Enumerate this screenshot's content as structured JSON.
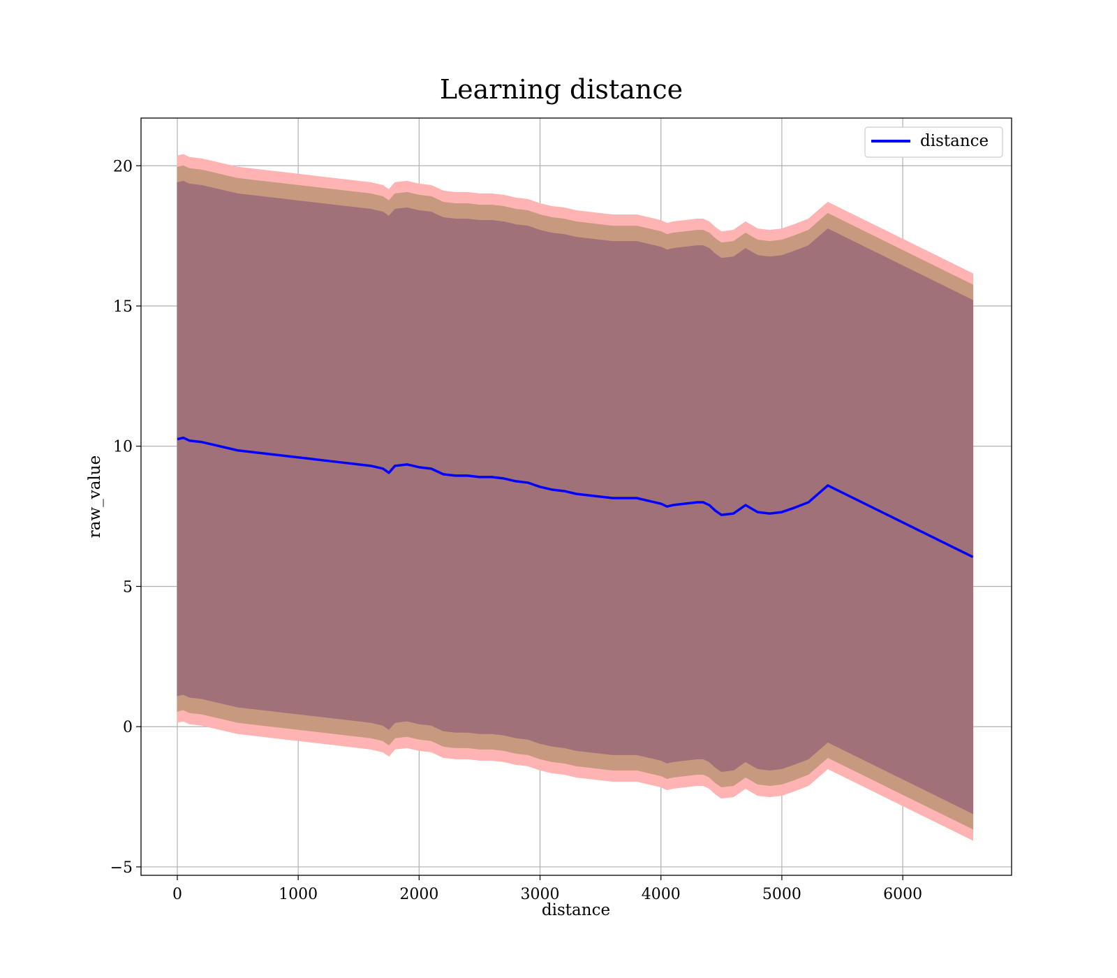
{
  "chart_data": {
    "type": "line",
    "title": "Learning distance",
    "xlabel": "distance",
    "ylabel": "raw_value",
    "xlim": [
      -300,
      6900
    ],
    "ylim": [
      -5.3,
      21.7
    ],
    "xticks": [
      0,
      1000,
      2000,
      3000,
      4000,
      5000,
      6000
    ],
    "yticks": [
      -5,
      0,
      5,
      10,
      15,
      20
    ],
    "grid": true,
    "legend": {
      "position": "top-right",
      "entries": [
        "distance"
      ]
    },
    "colors": {
      "line": "#0000ff",
      "band_outer": "#ffb3b3",
      "band_middle": "#c79a80",
      "band_inner": "#a17179"
    },
    "series": [
      {
        "name": "distance",
        "x": [
          0,
          50,
          100,
          200,
          300,
          400,
          500,
          600,
          700,
          800,
          900,
          1000,
          1100,
          1200,
          1300,
          1400,
          1500,
          1600,
          1700,
          1750,
          1800,
          1900,
          2000,
          2100,
          2200,
          2300,
          2400,
          2500,
          2600,
          2700,
          2800,
          2900,
          3000,
          3100,
          3200,
          3300,
          3400,
          3500,
          3600,
          3700,
          3800,
          3900,
          4000,
          4050,
          4100,
          4200,
          4300,
          4350,
          4400,
          4450,
          4500,
          4600,
          4700,
          4800,
          4900,
          5000,
          5100,
          5220,
          5380,
          6580
        ],
        "values": [
          10.25,
          10.3,
          10.2,
          10.15,
          10.05,
          9.95,
          9.85,
          9.8,
          9.75,
          9.7,
          9.65,
          9.6,
          9.55,
          9.5,
          9.45,
          9.4,
          9.35,
          9.3,
          9.2,
          9.05,
          9.3,
          9.35,
          9.25,
          9.2,
          9.0,
          8.95,
          8.95,
          8.9,
          8.9,
          8.85,
          8.75,
          8.7,
          8.55,
          8.45,
          8.4,
          8.3,
          8.25,
          8.2,
          8.15,
          8.15,
          8.15,
          8.05,
          7.95,
          7.85,
          7.9,
          7.95,
          8.0,
          8.0,
          7.9,
          7.7,
          7.55,
          7.6,
          7.9,
          7.65,
          7.6,
          7.65,
          7.8,
          8.0,
          8.6,
          6.05
        ],
        "band_outer_halfwidth": [
          10.1,
          10.1,
          10.1,
          10.1,
          10.1,
          10.1,
          10.1,
          10.1,
          10.1,
          10.1,
          10.1,
          10.1,
          10.1,
          10.1,
          10.1,
          10.1,
          10.1,
          10.1,
          10.1,
          10.1,
          10.1,
          10.1,
          10.1,
          10.1,
          10.1,
          10.1,
          10.1,
          10.1,
          10.1,
          10.1,
          10.1,
          10.1,
          10.1,
          10.1,
          10.1,
          10.1,
          10.1,
          10.1,
          10.1,
          10.1,
          10.1,
          10.1,
          10.1,
          10.1,
          10.1,
          10.1,
          10.1,
          10.1,
          10.1,
          10.1,
          10.1,
          10.1,
          10.1,
          10.1,
          10.1,
          10.1,
          10.1,
          10.1,
          10.1,
          10.1
        ],
        "band_middle_halfwidth": [
          9.7,
          9.7,
          9.7,
          9.7,
          9.7,
          9.7,
          9.7,
          9.7,
          9.7,
          9.7,
          9.7,
          9.7,
          9.7,
          9.7,
          9.7,
          9.7,
          9.7,
          9.7,
          9.7,
          9.7,
          9.7,
          9.7,
          9.7,
          9.7,
          9.7,
          9.7,
          9.7,
          9.7,
          9.7,
          9.7,
          9.7,
          9.7,
          9.7,
          9.7,
          9.7,
          9.7,
          9.7,
          9.7,
          9.7,
          9.7,
          9.7,
          9.7,
          9.7,
          9.7,
          9.7,
          9.7,
          9.7,
          9.7,
          9.7,
          9.7,
          9.7,
          9.7,
          9.7,
          9.7,
          9.7,
          9.7,
          9.7,
          9.7,
          9.7,
          9.7
        ],
        "band_inner_halfwidth": [
          9.15,
          9.15,
          9.15,
          9.15,
          9.15,
          9.15,
          9.15,
          9.15,
          9.15,
          9.15,
          9.15,
          9.15,
          9.15,
          9.15,
          9.15,
          9.15,
          9.15,
          9.15,
          9.15,
          9.15,
          9.15,
          9.15,
          9.15,
          9.15,
          9.15,
          9.15,
          9.15,
          9.15,
          9.15,
          9.15,
          9.15,
          9.15,
          9.15,
          9.15,
          9.15,
          9.15,
          9.15,
          9.15,
          9.15,
          9.15,
          9.15,
          9.15,
          9.15,
          9.15,
          9.15,
          9.15,
          9.15,
          9.15,
          9.15,
          9.15,
          9.15,
          9.15,
          9.15,
          9.15,
          9.15,
          9.15,
          9.15,
          9.15,
          9.15,
          9.15
        ]
      }
    ]
  }
}
